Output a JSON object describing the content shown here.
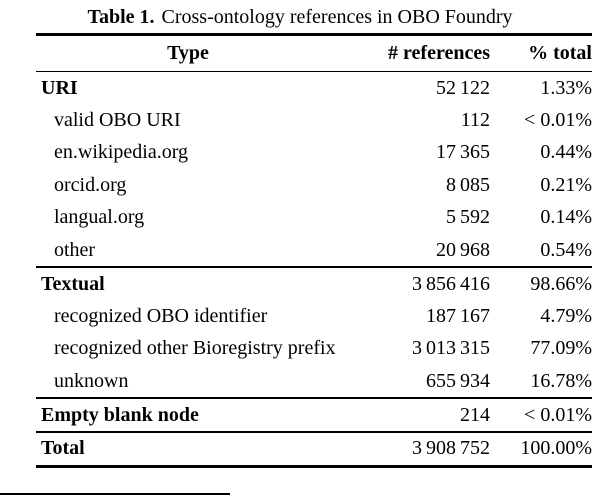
{
  "caption": {
    "label": "Table 1.",
    "text": "Cross-ontology references in OBO Foundry"
  },
  "colors": {
    "text": "#000000",
    "background": "#ffffff",
    "rule": "#000000"
  },
  "table": {
    "headers": {
      "type": "Type",
      "references": "# references",
      "percent": "% total"
    },
    "rows": [
      {
        "type": "URI",
        "references": "52 122",
        "percent": "1.33%"
      },
      {
        "type": "valid OBO URI",
        "references": "112",
        "percent": "< 0.01%"
      },
      {
        "type": "en.wikipedia.org",
        "references": "17 365",
        "percent": "0.44%"
      },
      {
        "type": "orcid.org",
        "references": "8 085",
        "percent": "0.21%"
      },
      {
        "type": "langual.org",
        "references": "5 592",
        "percent": "0.14%"
      },
      {
        "type": "other",
        "references": "20 968",
        "percent": "0.54%"
      },
      {
        "type": "Textual",
        "references": "3 856 416",
        "percent": "98.66%"
      },
      {
        "type": "recognized OBO identifier",
        "references": "187 167",
        "percent": "4.79%"
      },
      {
        "type": "recognized other Bioregistry prefix",
        "references": "3 013 315",
        "percent": "77.09%"
      },
      {
        "type": "unknown",
        "references": "655 934",
        "percent": "16.78%"
      },
      {
        "type": "Empty blank node",
        "references": "214",
        "percent": "< 0.01%"
      },
      {
        "type": "Total",
        "references": "3 908 752",
        "percent": "100.00%"
      }
    ]
  }
}
